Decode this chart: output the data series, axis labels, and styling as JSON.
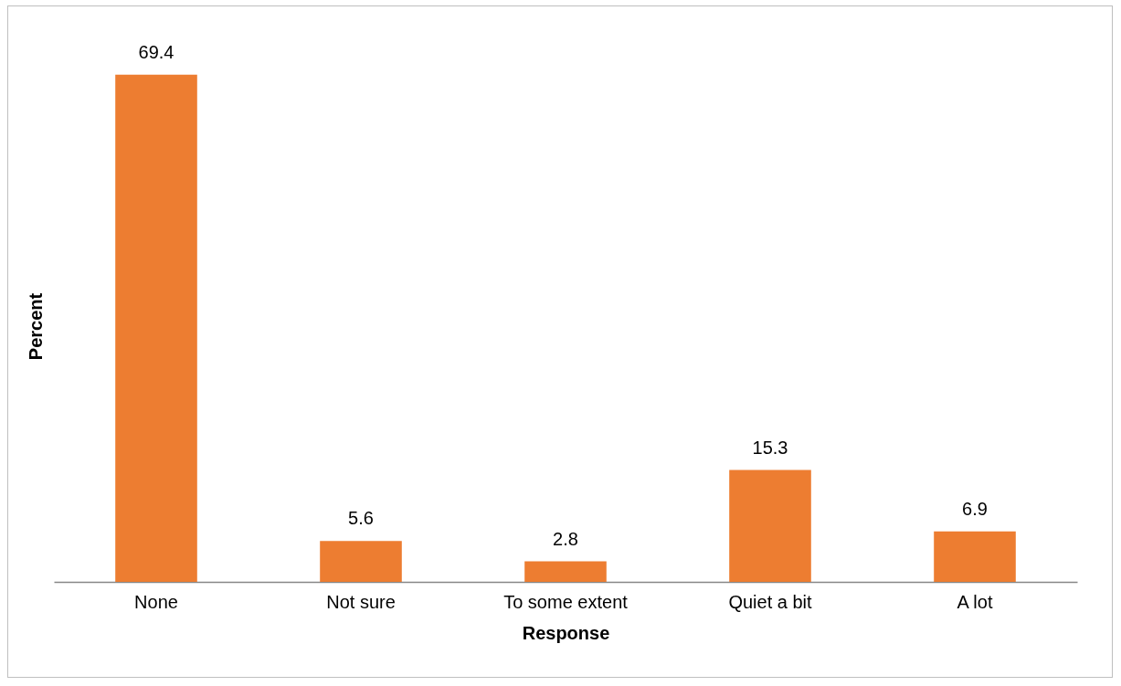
{
  "chart_data": {
    "type": "bar",
    "xlabel": "Response",
    "ylabel": "Percent",
    "categories": [
      "None",
      "Not sure",
      "To some extent",
      "Quiet a bit",
      "A lot"
    ],
    "values": [
      69.4,
      5.6,
      2.8,
      15.3,
      6.9
    ],
    "color": "#ed7d31",
    "data_labels": true,
    "tick_labels": "x"
  }
}
